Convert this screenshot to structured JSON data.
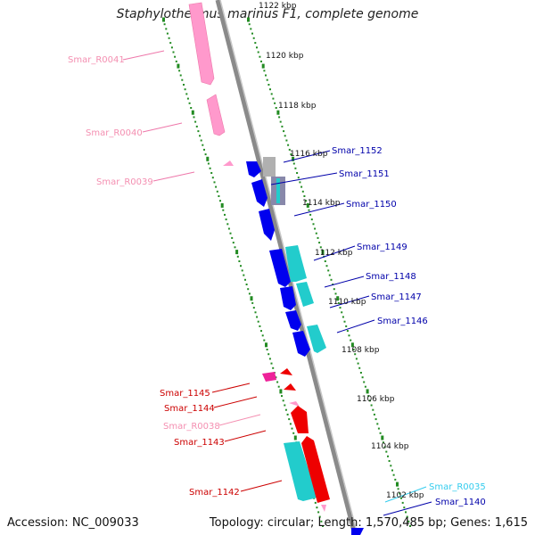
{
  "title": "Staphylothermus marinus F1, complete genome",
  "accession": "Accession: NC_009033",
  "topology": "Topology: circular; Length: 1,570,485 bp; Genes: 1,615",
  "scale_labels": [
    "1122 kbp",
    "1120 kbp",
    "1118 kbp",
    "1116 kbp",
    "1114 kbp",
    "1112 kbp",
    "1110 kbp",
    "1108 kbp",
    "1106 kbp",
    "1104 kbp",
    "1102 kbp"
  ],
  "gene_labels": [
    {
      "text": "Smar_R0041",
      "color": "#f48fb1"
    },
    {
      "text": "Smar_R0040",
      "color": "#f48fb1"
    },
    {
      "text": "Smar_R0039",
      "color": "#f48fb1"
    },
    {
      "text": "Smar_1152",
      "color": "#0000aa"
    },
    {
      "text": "Smar_1151",
      "color": "#0000aa"
    },
    {
      "text": "Smar_1150",
      "color": "#0000aa"
    },
    {
      "text": "Smar_1149",
      "color": "#0000aa"
    },
    {
      "text": "Smar_1148",
      "color": "#0000aa"
    },
    {
      "text": "Smar_1147",
      "color": "#0000aa"
    },
    {
      "text": "Smar_1146",
      "color": "#0000aa"
    },
    {
      "text": "Smar_1145",
      "color": "#cc0000"
    },
    {
      "text": "Smar_1144",
      "color": "#cc0000"
    },
    {
      "text": "Smar_R0038",
      "color": "#f48fb1"
    },
    {
      "text": "Smar_1143",
      "color": "#cc0000"
    },
    {
      "text": "Smar_1142",
      "color": "#cc0000"
    },
    {
      "text": "Smar_R0035",
      "color": "#33ccee"
    },
    {
      "text": "Smar_1140",
      "color": "#0000aa"
    }
  ],
  "colors": {
    "backbone": "#8a8a8a",
    "rRNA": "#ff99cc",
    "cds_forward": "#0000ee",
    "cds_reverse": "#ee0000",
    "match": "#22cccc",
    "grey_feature": "#b0b0b0",
    "ticks": "#228b22"
  }
}
